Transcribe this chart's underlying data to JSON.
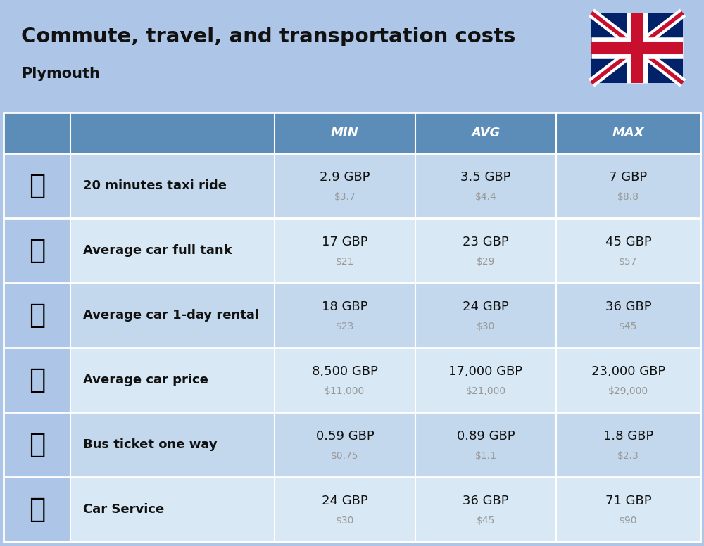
{
  "title": "Commute, travel, and transportation costs",
  "subtitle": "Plymouth",
  "bg_color": "#adc6e8",
  "header_bg": "#5b8db8",
  "header_text_color": "#ffffff",
  "row_bg_odd": "#c4d8ed",
  "row_bg_even": "#d8e8f4",
  "icon_col_bg": "#adc6e8",
  "columns": [
    "MIN",
    "AVG",
    "MAX"
  ],
  "rows": [
    {
      "label": "20 minutes taxi ride",
      "min_gbp": "2.9 GBP",
      "min_usd": "$3.7",
      "avg_gbp": "3.5 GBP",
      "avg_usd": "$4.4",
      "max_gbp": "7 GBP",
      "max_usd": "$8.8"
    },
    {
      "label": "Average car full tank",
      "min_gbp": "17 GBP",
      "min_usd": "$21",
      "avg_gbp": "23 GBP",
      "avg_usd": "$29",
      "max_gbp": "45 GBP",
      "max_usd": "$57"
    },
    {
      "label": "Average car 1-day rental",
      "min_gbp": "18 GBP",
      "min_usd": "$23",
      "avg_gbp": "24 GBP",
      "avg_usd": "$30",
      "max_gbp": "36 GBP",
      "max_usd": "$45"
    },
    {
      "label": "Average car price",
      "min_gbp": "8,500 GBP",
      "min_usd": "$11,000",
      "avg_gbp": "17,000 GBP",
      "avg_usd": "$21,000",
      "max_gbp": "23,000 GBP",
      "max_usd": "$29,000"
    },
    {
      "label": "Bus ticket one way",
      "min_gbp": "0.59 GBP",
      "min_usd": "$0.75",
      "avg_gbp": "0.89 GBP",
      "avg_usd": "$1.1",
      "max_gbp": "1.8 GBP",
      "max_usd": "$2.3"
    },
    {
      "label": "Car Service",
      "min_gbp": "24 GBP",
      "min_usd": "$30",
      "avg_gbp": "36 GBP",
      "avg_usd": "$45",
      "max_gbp": "71 GBP",
      "max_usd": "$90"
    }
  ],
  "title_fontsize": 21,
  "subtitle_fontsize": 15,
  "header_fontsize": 13,
  "label_fontsize": 13,
  "value_fontsize": 13,
  "usd_fontsize": 10
}
